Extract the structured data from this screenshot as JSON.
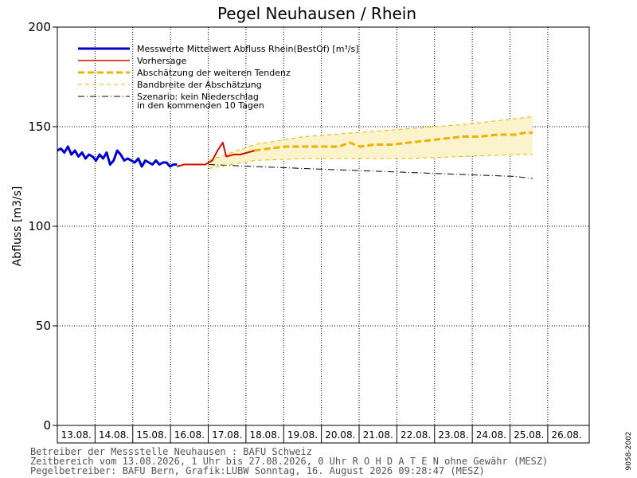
{
  "chart_data": {
    "type": "line",
    "title": "Pegel Neuhausen / Rhein",
    "ylabel": "Abfluss [m3/s]",
    "ylim": [
      0,
      200
    ],
    "yticks": [
      0,
      50,
      100,
      150,
      200
    ],
    "xlim": [
      0,
      15
    ],
    "days": [
      "13.08.",
      "14.08.",
      "15.08.",
      "16.08.",
      "17.08.",
      "18.08.",
      "19.08.",
      "20.08.",
      "21.08.",
      "22.08.",
      "23.08.",
      "24.08.",
      "25.08.",
      "26.08."
    ],
    "grid": "dotted",
    "legend": [
      {
        "label": "Messwerte Mittelwert Abfluss Rhein(BestOf)  [m³/s]",
        "color": "#0000cc",
        "style": "solid-thick"
      },
      {
        "label": "Vorhersage",
        "color": "#cc1100",
        "style": "solid"
      },
      {
        "label": "Abschätzung der weiteren Tendenz",
        "color": "#f0b000",
        "style": "dashed-thick"
      },
      {
        "label": "Bandbreite der Abschätzung",
        "color": "#f0b000",
        "style": "dashed-thin"
      },
      {
        "label": "Szenario: kein Niederschlag",
        "label2": "in den kommenden 10 Tagen",
        "color": "#000000",
        "style": "dashdot"
      }
    ],
    "series": [
      {
        "name": "Messwerte Mittelwert Abfluss Rhein(BestOf)  [m³/s]",
        "color": "#0000cc",
        "x": [
          0,
          0.1,
          0.2,
          0.3,
          0.4,
          0.5,
          0.6,
          0.7,
          0.8,
          0.9,
          1.0,
          1.1,
          1.2,
          1.3,
          1.4,
          1.5,
          1.6,
          1.7,
          1.8,
          1.9,
          2.0,
          2.1,
          2.2,
          2.3,
          2.4,
          2.5,
          2.6,
          2.7,
          2.8,
          2.9,
          3.0,
          3.1,
          3.2,
          3.3,
          3.4
        ],
        "y": [
          138,
          139,
          137,
          140,
          136,
          138,
          135,
          137,
          134,
          136,
          135,
          133,
          136,
          134,
          137,
          131,
          133,
          138,
          136,
          133,
          134,
          133,
          132,
          134,
          130,
          133,
          132,
          131,
          133,
          131,
          132,
          132,
          130,
          131,
          131
        ]
      },
      {
        "name": "Vorhersage",
        "color": "#cc1100",
        "x": [
          3.4,
          3.6,
          3.8,
          4.0,
          4.2,
          4.4,
          4.55,
          4.7,
          4.8,
          5.0,
          5.2,
          5.4,
          5.6
        ],
        "y": [
          130,
          131,
          131,
          131,
          131,
          133,
          138,
          142,
          135,
          136,
          136,
          137,
          138
        ]
      },
      {
        "name": "Abschätzung der weiteren Tendenz",
        "color": "#f0b000",
        "x": [
          5.6,
          6.0,
          6.5,
          7.0,
          7.5,
          8.0,
          8.3,
          8.6,
          9.0,
          9.5,
          10.0,
          10.5,
          11.0,
          11.5,
          12.0,
          12.5,
          13.0,
          13.3,
          13.5
        ],
        "y": [
          138,
          139,
          140,
          140,
          140,
          140,
          142,
          140,
          141,
          141,
          142,
          143,
          144,
          145,
          145,
          146,
          146,
          147,
          147
        ]
      },
      {
        "name": "Bandbreite der Abschätzung oben",
        "color": "#f0b000",
        "x": [
          4.3,
          5.6,
          7.0,
          8.5,
          10.0,
          11.5,
          13.0,
          13.5
        ],
        "y": [
          133,
          141,
          145,
          147,
          149,
          151,
          154,
          155
        ]
      },
      {
        "name": "Bandbreite der Abschätzung unten",
        "color": "#f0b000",
        "x": [
          4.3,
          5.6,
          7.0,
          8.5,
          10.0,
          11.5,
          13.0,
          13.5
        ],
        "y": [
          129,
          133,
          134,
          134,
          134,
          135,
          136,
          136
        ]
      },
      {
        "name": "Szenario: kein Niederschlag",
        "color": "#000000",
        "x": [
          4.3,
          5.6,
          7.0,
          8.5,
          10.0,
          11.5,
          13.0,
          13.5
        ],
        "y": [
          131,
          130,
          129,
          128,
          127,
          126,
          125,
          124
        ]
      }
    ]
  },
  "footer": {
    "line1": "Betreiber der Messstelle Neuhausen : BAFU Schweiz",
    "line2": "Zeitbereich vom 13.08.2026, 1 Uhr bis 27.08.2026, 0 Uhr   R O H D A T E N ohne Gewähr (MESZ)",
    "line3": "Pegelbetreiber: BAFU Bern, Grafik:LUBW Sonntag, 16. August 2026 09:28:47 (MESZ)"
  },
  "side_code": "9058-2002"
}
